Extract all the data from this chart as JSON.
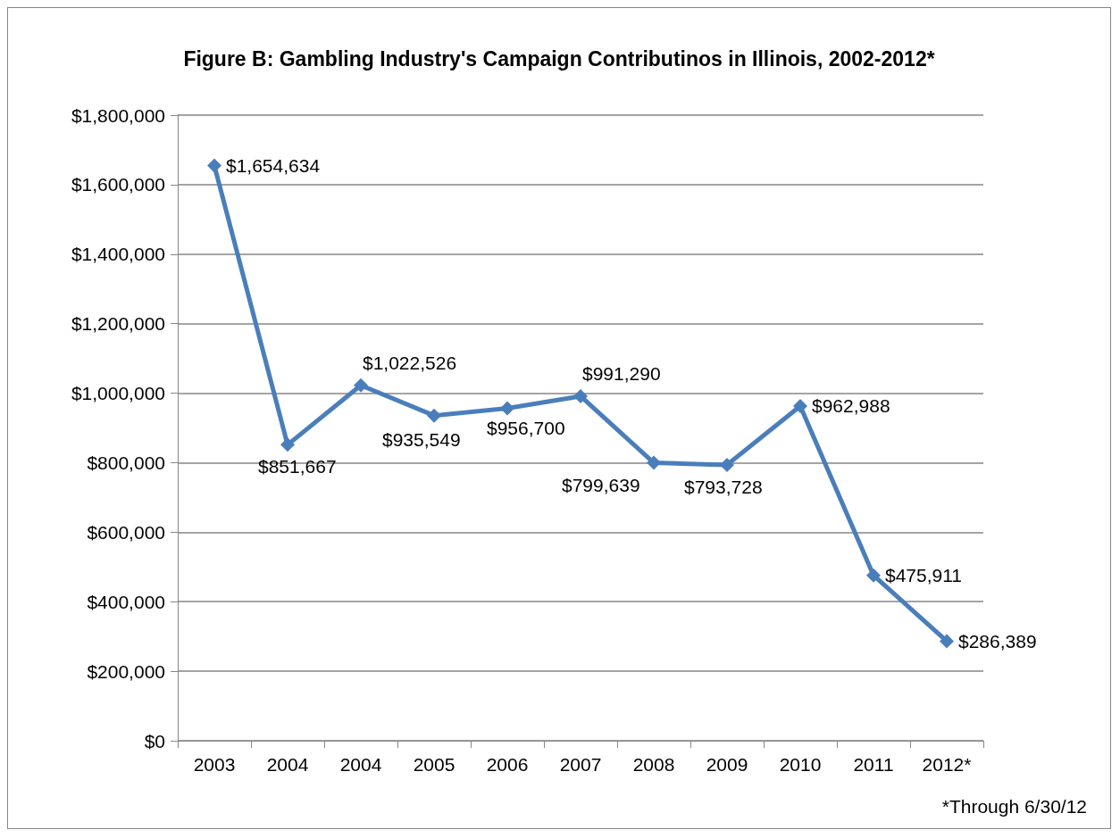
{
  "chart_data": {
    "type": "line",
    "title": "Figure B: Gambling Industry's Campaign Contributinos in Illinois, 2002-2012*",
    "categories": [
      "2003",
      "2004",
      "2004",
      "2005",
      "2006",
      "2007",
      "2008",
      "2009",
      "2010",
      "2011",
      "2012*"
    ],
    "series": [
      {
        "color": "#4a7ebb",
        "values": [
          1654634,
          851667,
          1022526,
          935549,
          956700,
          991290,
          799639,
          793728,
          962988,
          475911,
          286389
        ],
        "value_labels": [
          "$1,654,634",
          "$851,667",
          "$1,022,526",
          "$935,549",
          "$956,700",
          "$991,290",
          "$799,639",
          "$793,728",
          "$962,988",
          "$475,911",
          "$286,389"
        ]
      }
    ],
    "ylim": [
      0,
      1800000
    ],
    "yticks": [
      {
        "value": 0,
        "label": "$0"
      },
      {
        "value": 200000,
        "label": "$200,000"
      },
      {
        "value": 400000,
        "label": "$400,000"
      },
      {
        "value": 600000,
        "label": "$600,000"
      },
      {
        "value": 800000,
        "label": "$800,000"
      },
      {
        "value": 1000000,
        "label": "$1,000,000"
      },
      {
        "value": 1200000,
        "label": "$1,200,000"
      },
      {
        "value": 1400000,
        "label": "$1,400,000"
      },
      {
        "value": 1600000,
        "label": "$1,600,000"
      },
      {
        "value": 1800000,
        "label": "$1,800,000"
      }
    ],
    "grid": "y",
    "marker": "diamond",
    "line_style": "solid",
    "annotations": [
      "*Through 6/30/12"
    ]
  }
}
